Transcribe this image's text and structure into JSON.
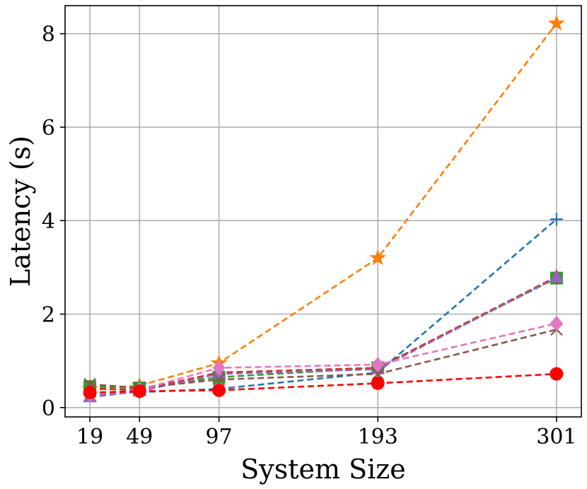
{
  "chart_data": {
    "type": "line",
    "title": "",
    "xlabel": "System Size",
    "ylabel": "Latency (s)",
    "x": [
      19,
      49,
      97,
      193,
      301
    ],
    "x_tick_labels": [
      "19",
      "49",
      "97",
      "193",
      "301"
    ],
    "y_ticks": [
      0,
      2,
      4,
      6,
      8
    ],
    "y_tick_labels": [
      "0",
      "2",
      "4",
      "6",
      "8"
    ],
    "xlim": [
      4,
      316
    ],
    "ylim": [
      -0.2,
      8.6
    ],
    "grid": true,
    "legend": "none",
    "series": [
      {
        "name": "series-orange-star",
        "color": "#ff7f0e",
        "marker": "star",
        "values": [
          0.4,
          0.47,
          0.95,
          3.2,
          8.22
        ]
      },
      {
        "name": "series-blue-plus",
        "color": "#1f77b4",
        "marker": "plus",
        "values": [
          0.28,
          0.33,
          0.4,
          0.75,
          4.03
        ]
      },
      {
        "name": "series-green-square",
        "color": "#2ca02c",
        "marker": "square",
        "values": [
          0.45,
          0.42,
          0.65,
          0.85,
          2.77
        ]
      },
      {
        "name": "series-crimson-diamond",
        "color": "#d62728",
        "marker": "thin_diamond",
        "values": [
          0.4,
          0.38,
          0.75,
          0.85,
          2.8
        ]
      },
      {
        "name": "series-purple-triangle",
        "color": "#9467bd",
        "marker": "triangle",
        "values": [
          0.22,
          0.35,
          0.72,
          0.82,
          2.78
        ]
      },
      {
        "name": "series-brown-x",
        "color": "#8c564b",
        "marker": "x",
        "values": [
          0.5,
          0.42,
          0.6,
          0.72,
          1.67
        ]
      },
      {
        "name": "series-pink-diamond",
        "color": "#e377c2",
        "marker": "diamond",
        "values": [
          0.28,
          0.38,
          0.85,
          0.92,
          1.8
        ]
      },
      {
        "name": "series-red-circle",
        "color": "#ff0000",
        "marker": "circle",
        "values": [
          0.32,
          0.35,
          0.37,
          0.52,
          0.72
        ]
      }
    ]
  }
}
